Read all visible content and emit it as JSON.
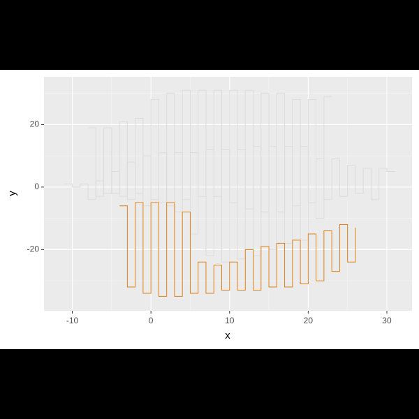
{
  "chart_data": {
    "type": "step",
    "x_label": "x",
    "y_label": "y",
    "xlim": [
      -13.6,
      33.2
    ],
    "ylim": [
      -39.6,
      35.3
    ],
    "xticks": [
      -10,
      0,
      10,
      20,
      30
    ],
    "yticks": [
      -20,
      0,
      20
    ],
    "grid": true,
    "series": [
      {
        "color": "#dcdcdc",
        "x": [
          -11,
          -10,
          -9,
          -8,
          -7,
          -6,
          -5,
          -4,
          -3,
          -2,
          -1,
          0,
          1,
          2,
          3,
          4,
          5,
          6,
          7,
          8,
          9,
          10,
          11,
          12,
          13,
          14,
          15,
          16,
          17,
          18,
          19,
          20,
          21,
          22,
          23,
          24,
          25,
          26,
          27,
          28,
          29,
          30,
          31
        ],
        "values": [
          1,
          0,
          1,
          -4,
          2,
          -2,
          5,
          -3,
          8,
          -2,
          10,
          -4,
          11,
          -6,
          11,
          -4,
          11,
          -3,
          12,
          -3,
          12,
          -5,
          12,
          -7,
          13,
          -8,
          13,
          -8,
          13,
          -6,
          13,
          -5,
          9,
          -4,
          9,
          -3,
          7,
          -2,
          6,
          -4,
          6,
          5,
          5
        ]
      },
      {
        "color": "#dcdcdc",
        "x": [
          -8,
          -7,
          -6,
          -5,
          -4,
          -3,
          -2,
          -1,
          0,
          1,
          2,
          3,
          4,
          5,
          6,
          7,
          8,
          9,
          10,
          11,
          12,
          13,
          14,
          15,
          16,
          17,
          18,
          19,
          20,
          21,
          22,
          23
        ],
        "values": [
          19,
          -3,
          19,
          -2,
          21,
          -4,
          22,
          -6,
          28,
          -5,
          30,
          -8,
          31,
          -15,
          31,
          -22,
          31,
          -24,
          31,
          -23,
          31,
          -22,
          30,
          -20,
          30,
          -18,
          28,
          -17,
          28,
          -10,
          29,
          29
        ]
      },
      {
        "color": "#e08214",
        "x": [
          -4,
          -3,
          -2,
          -1,
          0,
          1,
          2,
          3,
          4,
          5,
          6,
          7,
          8,
          9,
          10,
          11,
          12,
          13,
          14,
          15,
          16,
          17,
          18,
          19,
          20,
          21,
          22,
          23,
          24,
          25,
          26
        ],
        "values": [
          -6,
          -32,
          -5,
          -34,
          -5,
          -35,
          -5,
          -35,
          -8,
          -34,
          -24,
          -34,
          -25,
          -33,
          -24,
          -33,
          -20,
          -33,
          -19,
          -32,
          -18,
          -32,
          -17,
          -31,
          -15,
          -30,
          -14,
          -27,
          -12,
          -24,
          -13
        ]
      }
    ]
  }
}
